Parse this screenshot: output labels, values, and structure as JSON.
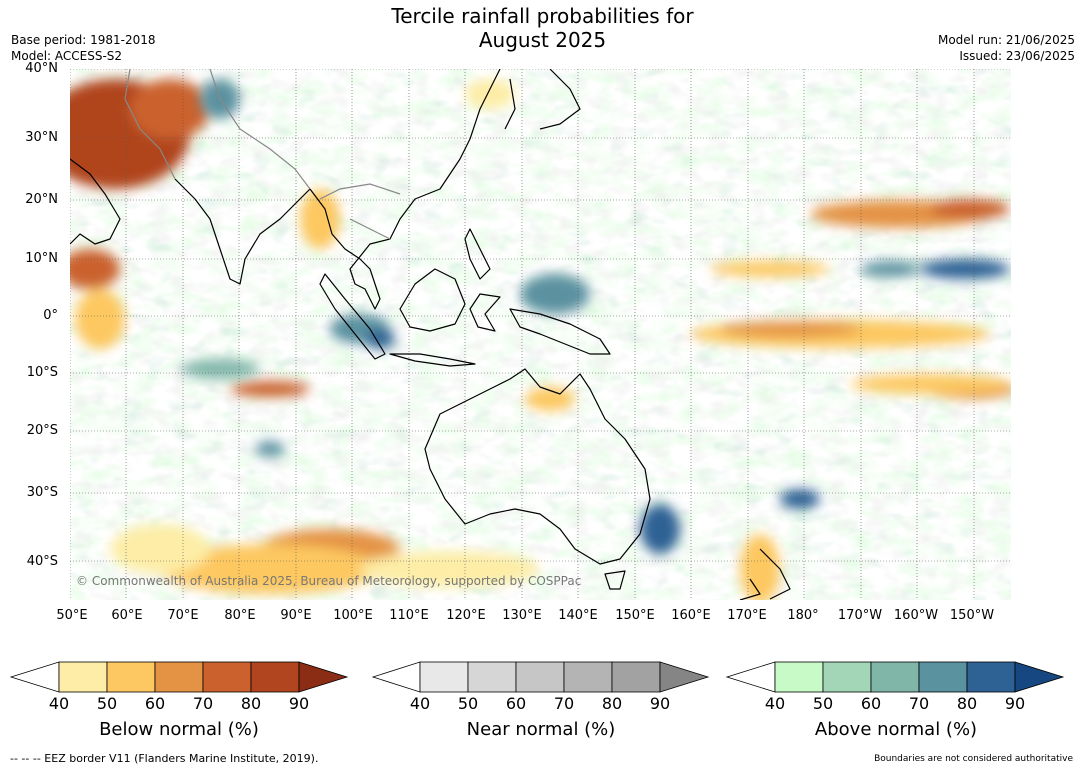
{
  "title_line1": "Tercile rainfall probabilities for",
  "title_line2": "August 2025",
  "base_period": "Base period: 1981-2018",
  "model": "Model: ACCESS-S2",
  "model_run": "Model run: 21/06/2025",
  "issued": "Issued: 23/06/2025",
  "copyright": "© Commonwealth of Australia 2025, Bureau of Meteorology, supported by COSPPac",
  "lat_labels": [
    "40°N",
    "30°N",
    "20°N",
    "10°N",
    "0°",
    "10°S",
    "20°S",
    "30°S",
    "40°S"
  ],
  "lon_labels": [
    "50°E",
    "60°E",
    "70°E",
    "80°E",
    "90°E",
    "100°E",
    "110°E",
    "120°E",
    "130°E",
    "140°E",
    "150°E",
    "160°E",
    "170°E",
    "180°",
    "170°W",
    "160°W",
    "150°W"
  ],
  "colorbars": [
    {
      "label": "Below normal (%)",
      "ticks": [
        "40",
        "50",
        "60",
        "70",
        "80",
        "90"
      ],
      "colors": [
        "#ffffff",
        "#fdeda6",
        "#fdc861",
        "#e49344",
        "#cb622e",
        "#b0451f",
        "#8b2c15"
      ]
    },
    {
      "label": "Near normal (%)",
      "ticks": [
        "40",
        "50",
        "60",
        "70",
        "80",
        "90"
      ],
      "colors": [
        "#ffffff",
        "#e8e8e8",
        "#d6d6d6",
        "#c6c6c6",
        "#b4b4b4",
        "#a2a2a2",
        "#858585"
      ]
    },
    {
      "label": "Above normal (%)",
      "ticks": [
        "40",
        "50",
        "60",
        "70",
        "80",
        "90"
      ],
      "colors": [
        "#ffffff",
        "#c8fac8",
        "#a3d6b6",
        "#80b6a8",
        "#5b92a0",
        "#2f6294",
        "#174780"
      ]
    }
  ],
  "footer_left": "--  --  -- EEZ border V11 (Flanders Marine Institute, 2019).",
  "footer_right": "Boundaries are not considered authoritative"
}
